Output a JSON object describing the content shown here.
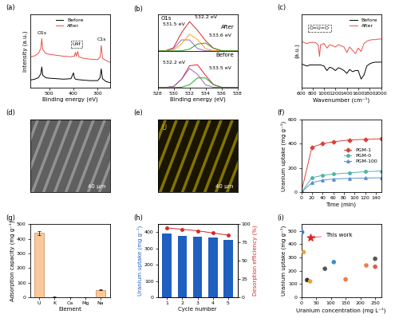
{
  "chart_data": [
    {
      "type": "line",
      "title": "(a)",
      "xlabel": "Binding energy (eV)",
      "ylabel": "Intensity (a.u.)",
      "x": [
        580,
        560,
        545,
        535,
        531,
        527,
        515,
        500,
        470,
        440,
        410,
        400,
        396,
        392,
        388,
        382,
        378,
        360,
        330,
        300,
        290,
        285,
        280,
        265,
        250
      ],
      "xlim": [
        580,
        250
      ],
      "xticks": [
        500,
        400,
        300
      ],
      "ylim": [
        0,
        1.5
      ],
      "tick_labels": "x",
      "legend": "upper center",
      "series": [
        {
          "name": "Before",
          "color": "#000000",
          "values": [
            0.15,
            0.17,
            0.2,
            0.28,
            0.42,
            0.25,
            0.2,
            0.19,
            0.18,
            0.17,
            0.18,
            0.3,
            0.2,
            0.17,
            0.17,
            0.16,
            0.16,
            0.15,
            0.14,
            0.14,
            0.2,
            0.38,
            0.18,
            0.12,
            0.1
          ]
        },
        {
          "name": "After",
          "color": "#e8504a",
          "values": [
            0.62,
            0.65,
            0.7,
            0.8,
            1.0,
            0.78,
            0.7,
            0.68,
            0.66,
            0.64,
            0.63,
            0.64,
            0.64,
            0.72,
            0.64,
            0.74,
            0.63,
            0.6,
            0.58,
            0.57,
            0.62,
            0.86,
            0.6,
            0.55,
            0.52
          ]
        }
      ],
      "annotations": [
        {
          "x": 531,
          "y": 1.08,
          "text": "O1s"
        },
        {
          "x": 387,
          "y": 0.84,
          "text": "U4f",
          "line_style": "dashed"
        },
        {
          "x": 285,
          "y": 0.95,
          "text": "C1s"
        }
      ]
    },
    {
      "type": "spectra",
      "title": "(b)",
      "xlabel": "Binding energy (eV)",
      "x": [
        528,
        529,
        530,
        531,
        532,
        533,
        534,
        535,
        536,
        537,
        538
      ],
      "xlim": [
        528,
        538
      ],
      "xticks": [
        528,
        530,
        532,
        534,
        536,
        538
      ],
      "ylim": [
        0,
        1.5
      ],
      "tick_labels": "x",
      "panels": [
        {
          "name": "After",
          "label": "O1s",
          "series": [
            {
              "color": "#d62728",
              "values": [
                0,
                0.005,
                0.13,
                0.745,
                1.2,
                0.845,
                0.419,
                0.111,
                0.01,
                0,
                0
              ]
            },
            {
              "color": "#9467bd",
              "values": [
                0,
                0.004,
                0.095,
                0.45,
                0.45,
                0.095,
                0.004,
                0,
                0,
                0,
                0
              ]
            },
            {
              "color": "#ff9f1c",
              "values": [
                0,
                0.001,
                0.035,
                0.29,
                0.68,
                0.47,
                0.095,
                0.006,
                0,
                0,
                0
              ]
            },
            {
              "color": "#2ca02c",
              "values": [
                0,
                0,
                0,
                0.005,
                0.072,
                0.28,
                0.32,
                0.105,
                0.01,
                0,
                0
              ]
            }
          ],
          "annotations": [
            {
              "x": 530.0,
              "y": 1.0,
              "text": "531.5 eV"
            },
            {
              "x": 534.0,
              "y": 1.3,
              "text": "532.2 eV"
            },
            {
              "x": 535.8,
              "y": 0.55,
              "text": "533.6 eV"
            }
          ]
        },
        {
          "name": "Before",
          "series": [
            {
              "color": "#d62728",
              "values": [
                0,
                0.001,
                0.04,
                0.339,
                0.89,
                0.93,
                0.5,
                0.117,
                0.009,
                0,
                0
              ]
            },
            {
              "color": "#9467bd",
              "values": [
                0,
                0.001,
                0.04,
                0.33,
                0.78,
                0.54,
                0.11,
                0.007,
                0,
                0,
                0
              ]
            },
            {
              "color": "#2ca02c",
              "values": [
                0,
                0,
                0,
                0.009,
                0.11,
                0.39,
                0.39,
                0.11,
                0.009,
                0,
                0
              ]
            }
          ],
          "annotations": [
            {
              "x": 530.0,
              "y": 0.95,
              "text": "532.2 eV"
            },
            {
              "x": 535.8,
              "y": 0.7,
              "text": "533.5 eV"
            }
          ]
        }
      ]
    },
    {
      "type": "line",
      "title": "(c)",
      "xlabel": "Wavenumber (cm⁻¹)",
      "ylabel": "(a.u.)",
      "x": [
        600,
        650,
        700,
        750,
        800,
        850,
        900,
        920,
        940,
        1000,
        1050,
        1100,
        1150,
        1200,
        1250,
        1300,
        1350,
        1400,
        1450,
        1500,
        1550,
        1600,
        1650,
        1700,
        1750,
        1800,
        1850,
        1900,
        1950,
        2000
      ],
      "xlim": [
        600,
        2000
      ],
      "xticks": [
        600,
        800,
        1000,
        1200,
        1400,
        1600,
        1800,
        2000
      ],
      "ylim": [
        0,
        1.3
      ],
      "tick_labels": "x",
      "legend": "upper right",
      "series": [
        {
          "name": "Before",
          "color": "#000000",
          "values": [
            0.42,
            0.4,
            0.38,
            0.4,
            0.4,
            0.4,
            0.4,
            0.4,
            0.4,
            0.38,
            0.3,
            0.36,
            0.34,
            0.3,
            0.35,
            0.33,
            0.3,
            0.25,
            0.32,
            0.28,
            0.3,
            0.3,
            0.15,
            0.22,
            0.38,
            0.42,
            0.44,
            0.45,
            0.45,
            0.45
          ]
        },
        {
          "name": "After",
          "color": "#e8504a",
          "values": [
            0.82,
            0.8,
            0.78,
            0.8,
            0.8,
            0.8,
            0.75,
            0.55,
            0.76,
            0.78,
            0.7,
            0.76,
            0.74,
            0.72,
            0.76,
            0.74,
            0.72,
            0.62,
            0.72,
            0.66,
            0.6,
            0.7,
            0.64,
            0.78,
            0.82,
            0.84,
            0.85,
            0.85,
            0.86,
            0.86
          ]
        }
      ],
      "annotations": [
        {
          "x": 920,
          "y": 1.02,
          "text": "O=U=O",
          "line_style": "dashed"
        }
      ]
    },
    {
      "type": "image",
      "title": "(d)",
      "scale_bar": "40 μm",
      "colors": [
        "#5f5f5f",
        "#bdbdbd"
      ],
      "tick_labels": false
    },
    {
      "type": "image",
      "title": "(e)",
      "label": "U",
      "scale_bar": "40 μm",
      "colors": [
        "#1a1500",
        "#d8c200"
      ],
      "tick_labels": false
    },
    {
      "type": "line",
      "title": "(f)",
      "xlabel": "Time (min)",
      "ylabel": "Uranium uptake (mg g⁻¹)",
      "x": [
        0,
        20,
        40,
        60,
        90,
        120,
        150
      ],
      "xlim": [
        0,
        150
      ],
      "xticks": [
        0,
        20,
        40,
        60,
        80,
        100,
        120,
        140
      ],
      "ylim": [
        0,
        600
      ],
      "yticks": [
        0,
        200,
        400,
        600
      ],
      "legend": "center right",
      "series": [
        {
          "name": "PGM-1",
          "color": "#d9423a",
          "marker": "diamond",
          "values": [
            0,
            370,
            400,
            415,
            430,
            435,
            440
          ]
        },
        {
          "name": "PGM-0",
          "color": "#4fb3a9",
          "marker": "circle",
          "values": [
            0,
            120,
            140,
            150,
            160,
            170,
            175
          ]
        },
        {
          "name": "PGM-100",
          "color": "#5a8fd0",
          "marker": "triangle",
          "values": [
            0,
            80,
            100,
            110,
            115,
            118,
            120
          ]
        }
      ]
    },
    {
      "type": "bar",
      "title": "(g)",
      "xlabel": "Element",
      "ylabel": "Adsorption capacity (mg g⁻¹)",
      "categories": [
        "U",
        "K",
        "Ca",
        "Mg",
        "Na"
      ],
      "values": [
        440,
        3,
        2,
        2,
        50
      ],
      "errors": [
        15,
        1,
        1,
        1,
        3
      ],
      "color": "#f9c89b",
      "ylim": [
        0,
        500
      ],
      "yticks": [
        0,
        100,
        200,
        300,
        400,
        500
      ]
    },
    {
      "type": "bar",
      "title": "(h)",
      "xlabel": "Cycle number",
      "ylabel": "Uranium uptake (mg g⁻¹)",
      "y2label": "Desorption efficiency (%)",
      "categories": [
        "1",
        "2",
        "3",
        "4",
        "5"
      ],
      "ylim": [
        0,
        450
      ],
      "yticks": [
        0,
        100,
        200,
        300,
        400
      ],
      "y2lim": [
        0,
        100
      ],
      "y2ticks": [
        0,
        25,
        50,
        75,
        100
      ],
      "series": [
        {
          "type": "bar",
          "color": "#1f5fbf",
          "values": [
            395,
            380,
            372,
            370,
            355
          ]
        },
        {
          "type": "line",
          "axis": "y2",
          "color": "#d62728",
          "marker": "circle",
          "values": [
            95,
            93,
            91,
            88,
            85
          ]
        }
      ]
    },
    {
      "type": "scatter",
      "title": "(i)",
      "xlabel": "Uranium concentration (mg L⁻¹)",
      "ylabel": "Uranium uptake (mg g⁻¹)",
      "xlim": [
        0,
        270
      ],
      "xticks": [
        0,
        50,
        100,
        150,
        200,
        250
      ],
      "ylim": [
        0,
        550
      ],
      "yticks": [
        0,
        100,
        200,
        300,
        400,
        500
      ],
      "series": [
        {
          "x": [
            3,
            8,
            20,
            30,
            80,
            110,
            150,
            220,
            250,
            250
          ],
          "values": [
            490,
            340,
            130,
            120,
            215,
            265,
            135,
            240,
            290,
            230
          ],
          "colors": [
            "#3d7fd1",
            "#e8a33d",
            "#333333",
            "#e8a33d",
            "#555555",
            "#3d8fd1",
            "#f07a45",
            "#f07a45",
            "#555555",
            "#e05a4a"
          ],
          "marker": "circle"
        },
        {
          "x": [
            30
          ],
          "values": [
            450
          ],
          "color": "#d62728",
          "marker": "star"
        }
      ],
      "annotations": [
        {
          "x": 30,
          "y": 450,
          "text": "This work"
        }
      ]
    }
  ]
}
